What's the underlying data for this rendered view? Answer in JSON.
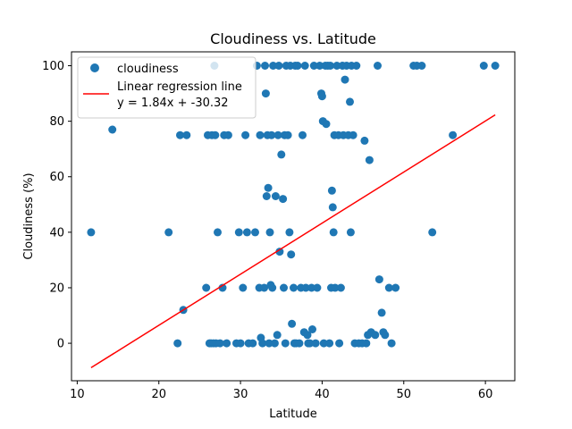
{
  "chart_data": {
    "type": "scatter",
    "title": "Cloudiness vs. Latitude",
    "xlabel": "Latitude",
    "ylabel": "Cloudiness (%)",
    "xlim": [
      9.3,
      63.6
    ],
    "ylim": [
      -13.5,
      105
    ],
    "xticks": [
      "10",
      "20",
      "30",
      "40",
      "50",
      "60"
    ],
    "yticks": [
      "0",
      "20",
      "40",
      "60",
      "80",
      "100"
    ],
    "grid": false,
    "legend_position": "top-left",
    "colors": {
      "points": "#1f77b4",
      "regression": "#ff0000"
    },
    "series": [
      {
        "name": "cloudiness",
        "points": [
          [
            11.7,
            40
          ],
          [
            14.3,
            77
          ],
          [
            21.2,
            40
          ],
          [
            22.3,
            0
          ],
          [
            22.6,
            75
          ],
          [
            23.0,
            12
          ],
          [
            23.4,
            75
          ],
          [
            25.8,
            20
          ],
          [
            26.0,
            75
          ],
          [
            26.2,
            0
          ],
          [
            26.4,
            0
          ],
          [
            26.5,
            75
          ],
          [
            26.7,
            0
          ],
          [
            26.8,
            100
          ],
          [
            26.9,
            75
          ],
          [
            27.0,
            0
          ],
          [
            27.2,
            40
          ],
          [
            27.5,
            0
          ],
          [
            27.8,
            20
          ],
          [
            28.0,
            75
          ],
          [
            28.3,
            0
          ],
          [
            28.5,
            75
          ],
          [
            29.5,
            0
          ],
          [
            29.8,
            40
          ],
          [
            30.0,
            0
          ],
          [
            30.3,
            20
          ],
          [
            30.6,
            75
          ],
          [
            30.8,
            40
          ],
          [
            31.0,
            0
          ],
          [
            31.5,
            0
          ],
          [
            31.8,
            40
          ],
          [
            32.0,
            100
          ],
          [
            32.3,
            20
          ],
          [
            32.4,
            75
          ],
          [
            32.5,
            2
          ],
          [
            32.7,
            0
          ],
          [
            32.9,
            20
          ],
          [
            33.0,
            100
          ],
          [
            33.1,
            90
          ],
          [
            33.2,
            53
          ],
          [
            33.3,
            75
          ],
          [
            33.4,
            56
          ],
          [
            33.5,
            0
          ],
          [
            33.6,
            40
          ],
          [
            33.7,
            21
          ],
          [
            33.8,
            75
          ],
          [
            33.9,
            20
          ],
          [
            34.0,
            100
          ],
          [
            34.2,
            0
          ],
          [
            34.3,
            53
          ],
          [
            34.5,
            3
          ],
          [
            34.6,
            75
          ],
          [
            34.7,
            100
          ],
          [
            34.8,
            33
          ],
          [
            35.0,
            68
          ],
          [
            35.2,
            52
          ],
          [
            35.3,
            20
          ],
          [
            35.4,
            75
          ],
          [
            35.5,
            0
          ],
          [
            35.6,
            100
          ],
          [
            35.8,
            75
          ],
          [
            36.0,
            40
          ],
          [
            36.1,
            100
          ],
          [
            36.2,
            32
          ],
          [
            36.3,
            7
          ],
          [
            36.5,
            20
          ],
          [
            36.6,
            0
          ],
          [
            36.7,
            100
          ],
          [
            36.8,
            0
          ],
          [
            37.0,
            100
          ],
          [
            37.2,
            0
          ],
          [
            37.4,
            20
          ],
          [
            37.6,
            75
          ],
          [
            37.8,
            4
          ],
          [
            37.9,
            100
          ],
          [
            38.0,
            20
          ],
          [
            38.2,
            3
          ],
          [
            38.3,
            0
          ],
          [
            38.5,
            0
          ],
          [
            38.7,
            20
          ],
          [
            38.8,
            5
          ],
          [
            39.0,
            100
          ],
          [
            39.2,
            0
          ],
          [
            39.4,
            20
          ],
          [
            39.7,
            100
          ],
          [
            39.9,
            90
          ],
          [
            40.0,
            89
          ],
          [
            40.1,
            80
          ],
          [
            40.2,
            0
          ],
          [
            40.4,
            100
          ],
          [
            40.5,
            79
          ],
          [
            40.7,
            100
          ],
          [
            40.9,
            0
          ],
          [
            41.0,
            100
          ],
          [
            41.1,
            20
          ],
          [
            41.2,
            55
          ],
          [
            41.3,
            49
          ],
          [
            41.4,
            40
          ],
          [
            41.5,
            75
          ],
          [
            41.6,
            20
          ],
          [
            41.8,
            100
          ],
          [
            42.0,
            75
          ],
          [
            42.1,
            0
          ],
          [
            42.3,
            20
          ],
          [
            42.5,
            100
          ],
          [
            42.6,
            75
          ],
          [
            42.8,
            95
          ],
          [
            43.0,
            100
          ],
          [
            43.2,
            75
          ],
          [
            43.4,
            87
          ],
          [
            43.5,
            40
          ],
          [
            43.6,
            100
          ],
          [
            43.8,
            75
          ],
          [
            44.0,
            0
          ],
          [
            44.2,
            100
          ],
          [
            44.5,
            0
          ],
          [
            44.9,
            0
          ],
          [
            45.2,
            73
          ],
          [
            45.4,
            0
          ],
          [
            45.6,
            3
          ],
          [
            45.8,
            66
          ],
          [
            46.0,
            4
          ],
          [
            46.5,
            3
          ],
          [
            46.8,
            100
          ],
          [
            47.0,
            23
          ],
          [
            47.3,
            11
          ],
          [
            47.5,
            4
          ],
          [
            47.7,
            3
          ],
          [
            48.2,
            20
          ],
          [
            48.5,
            0
          ],
          [
            49.0,
            20
          ],
          [
            51.2,
            100
          ],
          [
            51.6,
            100
          ],
          [
            52.2,
            100
          ],
          [
            53.5,
            40
          ],
          [
            56.0,
            75
          ],
          [
            59.8,
            100
          ],
          [
            61.2,
            100
          ]
        ]
      },
      {
        "name": "Linear regression line",
        "equation": "y = 1.84x + -30.32",
        "slope": 1.84,
        "intercept": -30.32,
        "x_range": [
          11.7,
          61.2
        ]
      }
    ]
  }
}
